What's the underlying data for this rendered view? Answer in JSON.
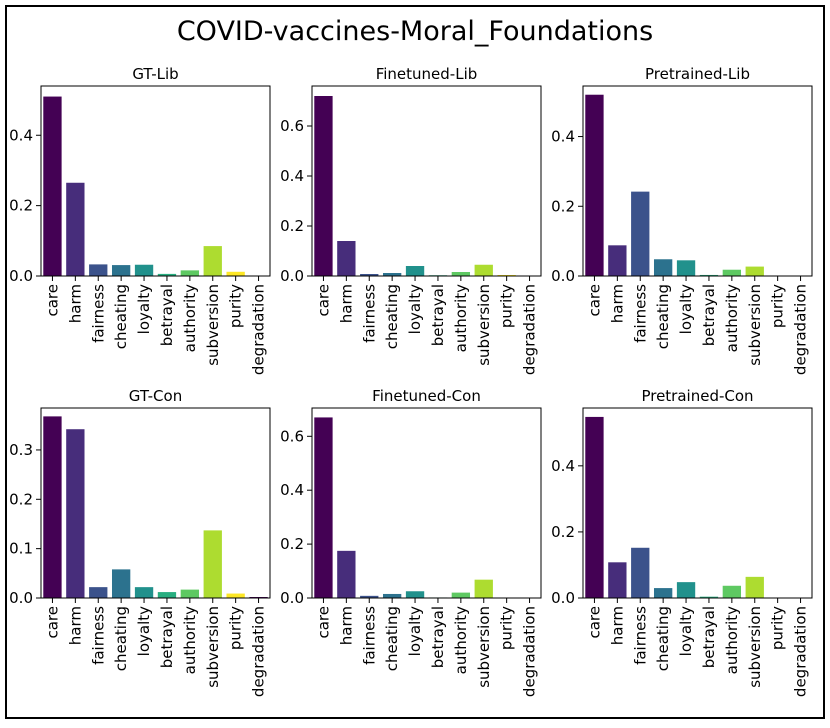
{
  "figure": {
    "title": "COVID-vaccines-Moral_Foundations"
  },
  "colors": [
    "#440154",
    "#472d7b",
    "#3b528b",
    "#2c728e",
    "#21918c",
    "#28ae80",
    "#5ec962",
    "#addc30",
    "#fde725"
  ],
  "chart_data": [
    {
      "type": "bar",
      "title": "GT-Lib",
      "categories": [
        "care",
        "harm",
        "fairness",
        "cheating",
        "loyalty",
        "betrayal",
        "authority",
        "subversion",
        "purity",
        "degradation"
      ],
      "values": [
        0.51,
        0.265,
        0.033,
        0.031,
        0.032,
        0.006,
        0.016,
        0.085,
        0.012,
        0.001
      ],
      "ylim": [
        0,
        0.54
      ],
      "yticks": [
        "0.0",
        "0.2",
        "0.4"
      ],
      "ytick_values": [
        0,
        0.2,
        0.4
      ]
    },
    {
      "type": "bar",
      "title": "Finetuned-Lib",
      "categories": [
        "care",
        "harm",
        "fairness",
        "cheating",
        "loyalty",
        "betrayal",
        "authority",
        "subversion",
        "purity",
        "degradation"
      ],
      "values": [
        0.72,
        0.14,
        0.008,
        0.012,
        0.04,
        0.003,
        0.016,
        0.045,
        0.004,
        0.001
      ],
      "ylim": [
        0,
        0.76
      ],
      "yticks": [
        "0.0",
        "0.2",
        "0.4",
        "0.6"
      ],
      "ytick_values": [
        0,
        0.2,
        0.4,
        0.6
      ]
    },
    {
      "type": "bar",
      "title": "Pretrained-Lib",
      "categories": [
        "care",
        "harm",
        "fairness",
        "cheating",
        "loyalty",
        "betrayal",
        "authority",
        "subversion",
        "purity",
        "degradation"
      ],
      "values": [
        0.52,
        0.088,
        0.242,
        0.048,
        0.045,
        0.003,
        0.018,
        0.027,
        0.001,
        0.001
      ],
      "ylim": [
        0,
        0.545
      ],
      "yticks": [
        "0.0",
        "0.2",
        "0.4"
      ],
      "ytick_values": [
        0,
        0.2,
        0.4
      ]
    },
    {
      "type": "bar",
      "title": "GT-Con",
      "categories": [
        "care",
        "harm",
        "fairness",
        "cheating",
        "loyalty",
        "betrayal",
        "authority",
        "subversion",
        "purity",
        "degradation"
      ],
      "values": [
        0.368,
        0.342,
        0.022,
        0.058,
        0.022,
        0.012,
        0.017,
        0.137,
        0.009,
        0.002
      ],
      "ylim": [
        0,
        0.385
      ],
      "yticks": [
        "0.0",
        "0.1",
        "0.2",
        "0.3"
      ],
      "ytick_values": [
        0,
        0.1,
        0.2,
        0.3
      ]
    },
    {
      "type": "bar",
      "title": "Finetuned-Con",
      "categories": [
        "care",
        "harm",
        "fairness",
        "cheating",
        "loyalty",
        "betrayal",
        "authority",
        "subversion",
        "purity",
        "degradation"
      ],
      "values": [
        0.67,
        0.175,
        0.008,
        0.015,
        0.025,
        0.002,
        0.02,
        0.068,
        0.001,
        0.001
      ],
      "ylim": [
        0,
        0.705
      ],
      "yticks": [
        "0.0",
        "0.2",
        "0.4",
        "0.6"
      ],
      "ytick_values": [
        0,
        0.2,
        0.4,
        0.6
      ]
    },
    {
      "type": "bar",
      "title": "Pretrained-Con",
      "categories": [
        "care",
        "harm",
        "fairness",
        "cheating",
        "loyalty",
        "betrayal",
        "authority",
        "subversion",
        "purity",
        "degradation"
      ],
      "values": [
        0.548,
        0.108,
        0.152,
        0.03,
        0.048,
        0.004,
        0.037,
        0.064,
        0.001,
        0.001
      ],
      "ylim": [
        0,
        0.575
      ],
      "yticks": [
        "0.0",
        "0.2",
        "0.4"
      ],
      "ytick_values": [
        0,
        0.2,
        0.4
      ]
    }
  ]
}
